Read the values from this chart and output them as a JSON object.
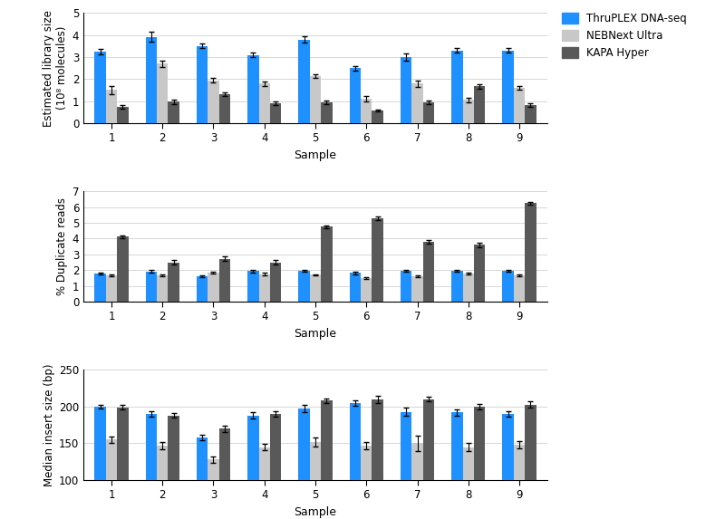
{
  "samples": [
    1,
    2,
    3,
    4,
    5,
    6,
    7,
    8,
    9
  ],
  "panel1": {
    "ylabel": "Estimated library size\n(10⁸ molecules)",
    "ylim": [
      0,
      5
    ],
    "yticks": [
      0,
      1,
      2,
      3,
      4,
      5
    ],
    "blue": [
      3.25,
      3.92,
      3.5,
      3.1,
      3.8,
      2.5,
      3.0,
      3.3,
      3.3
    ],
    "gray": [
      1.5,
      2.7,
      1.95,
      1.8,
      2.15,
      1.1,
      1.8,
      1.05,
      1.6
    ],
    "dark": [
      0.75,
      0.97,
      1.32,
      0.92,
      0.93,
      0.57,
      0.93,
      1.68,
      0.82
    ],
    "blue_err": [
      0.12,
      0.22,
      0.1,
      0.1,
      0.13,
      0.1,
      0.18,
      0.1,
      0.1
    ],
    "gray_err": [
      0.18,
      0.15,
      0.12,
      0.1,
      0.08,
      0.12,
      0.15,
      0.1,
      0.1
    ],
    "dark_err": [
      0.08,
      0.1,
      0.07,
      0.08,
      0.08,
      0.05,
      0.08,
      0.1,
      0.07
    ]
  },
  "panel2": {
    "ylabel": "% Duplicate reads",
    "ylim": [
      0,
      7
    ],
    "yticks": [
      0,
      1,
      2,
      3,
      4,
      5,
      6,
      7
    ],
    "blue": [
      1.8,
      1.92,
      1.6,
      1.93,
      1.97,
      1.82,
      1.95,
      1.95,
      1.97
    ],
    "gray": [
      1.65,
      1.68,
      1.82,
      1.75,
      1.7,
      1.52,
      1.62,
      1.8,
      1.65
    ],
    "dark": [
      4.12,
      2.5,
      2.72,
      2.5,
      4.75,
      5.3,
      3.8,
      3.6,
      6.25
    ],
    "blue_err": [
      0.05,
      0.08,
      0.07,
      0.07,
      0.05,
      0.07,
      0.07,
      0.07,
      0.06
    ],
    "gray_err": [
      0.05,
      0.06,
      0.06,
      0.07,
      0.05,
      0.06,
      0.05,
      0.05,
      0.05
    ],
    "dark_err": [
      0.1,
      0.12,
      0.15,
      0.12,
      0.1,
      0.1,
      0.12,
      0.12,
      0.1
    ]
  },
  "panel3": {
    "ylabel": "Median insert size (bp)",
    "ylim": [
      100,
      250
    ],
    "yticks": [
      100,
      150,
      200,
      250
    ],
    "blue": [
      200,
      190,
      158,
      188,
      198,
      205,
      193,
      192,
      190
    ],
    "gray": [
      155,
      147,
      128,
      145,
      152,
      147,
      150,
      145,
      148
    ],
    "dark": [
      199,
      188,
      170,
      190,
      208,
      210,
      210,
      200,
      203
    ],
    "blue_err": [
      3,
      4,
      4,
      4,
      5,
      4,
      6,
      4,
      4
    ],
    "gray_err": [
      4,
      5,
      4,
      4,
      6,
      5,
      10,
      5,
      5
    ],
    "dark_err": [
      3,
      3,
      4,
      4,
      3,
      5,
      3,
      4,
      4
    ]
  },
  "colors": {
    "blue": "#1E90FF",
    "gray": "#C8C8C8",
    "dark": "#595959"
  },
  "legend_labels": [
    "ThruPLEX DNA-seq",
    "NEBNext Ultra",
    "KAPA Hyper"
  ],
  "xlabel": "Sample",
  "bar_width": 0.22
}
